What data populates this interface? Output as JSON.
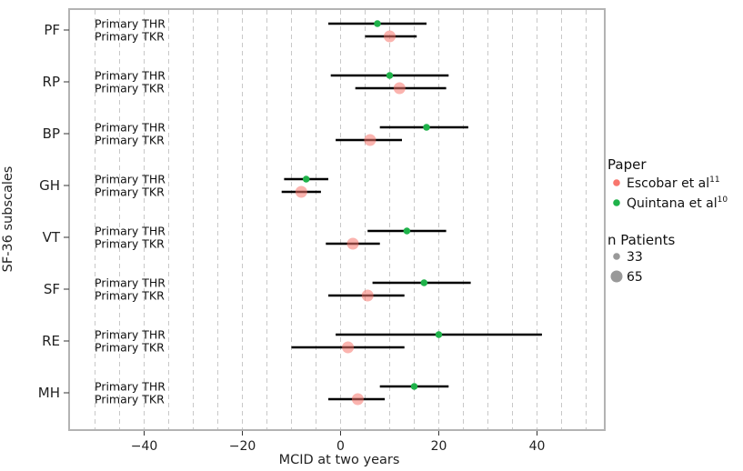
{
  "chart_data": {
    "type": "forest",
    "xlabel": "MCID at two years",
    "ylabel": "SF-36 subscales",
    "xlim": [
      -55,
      54
    ],
    "x_ticks": [
      -40,
      -20,
      0,
      20,
      40
    ],
    "grid": "vertical dashed",
    "legend": {
      "placement": "right",
      "paper_title": "Paper",
      "paper_entries": [
        {
          "label": "Escobar et al",
          "sup": "11",
          "color": "#f8766d"
        },
        {
          "label": "Quintana et al",
          "sup": "10",
          "color": "#1fb24a"
        }
      ],
      "size_title": "n Patients",
      "size_entries": [
        "33",
        "65"
      ]
    },
    "row_labels": [
      "Primary THR",
      "Primary TKR"
    ],
    "categories": [
      {
        "name": "PF",
        "rows": [
          {
            "label": "Primary THR",
            "paper": "Quintana et al",
            "estimate": 7.5,
            "ci": [
              -2.5,
              17.5
            ]
          },
          {
            "label": "Primary TKR",
            "paper": "Escobar et al",
            "estimate": 10.0,
            "ci": [
              5.0,
              15.5
            ]
          }
        ]
      },
      {
        "name": "RP",
        "rows": [
          {
            "label": "Primary THR",
            "paper": "Quintana et al",
            "estimate": 10.0,
            "ci": [
              -2.0,
              22.0
            ]
          },
          {
            "label": "Primary TKR",
            "paper": "Escobar et al",
            "estimate": 12.0,
            "ci": [
              3.0,
              21.5
            ]
          }
        ]
      },
      {
        "name": "BP",
        "rows": [
          {
            "label": "Primary THR",
            "paper": "Quintana et al",
            "estimate": 17.5,
            "ci": [
              8.0,
              26.0
            ]
          },
          {
            "label": "Primary TKR",
            "paper": "Escobar et al",
            "estimate": 6.0,
            "ci": [
              -1.0,
              12.5
            ]
          }
        ]
      },
      {
        "name": "GH",
        "rows": [
          {
            "label": "Primary THR",
            "paper": "Quintana et al",
            "estimate": -7.0,
            "ci": [
              -11.5,
              -2.5
            ]
          },
          {
            "label": "Primary TKR",
            "paper": "Escobar et al",
            "estimate": -8.0,
            "ci": [
              -12.0,
              -4.0
            ]
          }
        ]
      },
      {
        "name": "VT",
        "rows": [
          {
            "label": "Primary THR",
            "paper": "Quintana et al",
            "estimate": 13.5,
            "ci": [
              5.5,
              21.5
            ]
          },
          {
            "label": "Primary TKR",
            "paper": "Escobar et al",
            "estimate": 2.5,
            "ci": [
              -3.0,
              8.0
            ]
          }
        ]
      },
      {
        "name": "SF",
        "rows": [
          {
            "label": "Primary THR",
            "paper": "Quintana et al",
            "estimate": 17.0,
            "ci": [
              6.5,
              26.5
            ]
          },
          {
            "label": "Primary TKR",
            "paper": "Escobar et al",
            "estimate": 5.5,
            "ci": [
              -2.5,
              13.0
            ]
          }
        ]
      },
      {
        "name": "RE",
        "rows": [
          {
            "label": "Primary THR",
            "paper": "Quintana et al",
            "estimate": 20.0,
            "ci": [
              -1.0,
              41.0
            ]
          },
          {
            "label": "Primary TKR",
            "paper": "Escobar et al",
            "estimate": 1.5,
            "ci": [
              -10.0,
              13.0
            ]
          }
        ]
      },
      {
        "name": "MH",
        "rows": [
          {
            "label": "Primary THR",
            "paper": "Quintana et al",
            "estimate": 15.0,
            "ci": [
              8.0,
              22.0
            ]
          },
          {
            "label": "Primary TKR",
            "paper": "Escobar et al",
            "estimate": 3.5,
            "ci": [
              -2.5,
              9.0
            ]
          }
        ]
      }
    ]
  }
}
